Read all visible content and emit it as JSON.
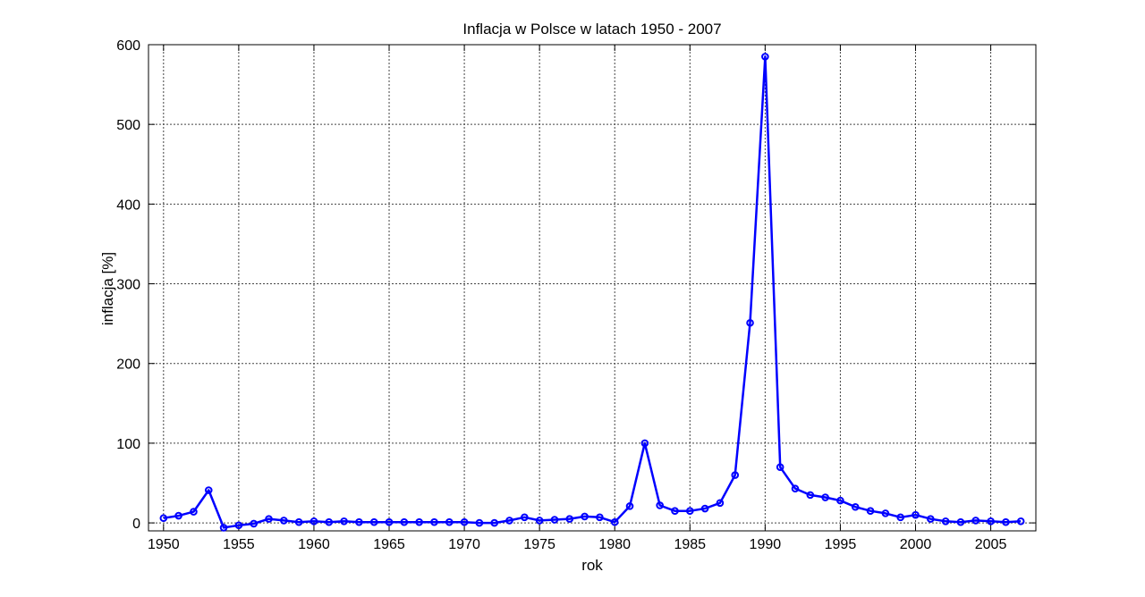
{
  "chart_data": {
    "type": "line",
    "title": "Inflacja w Polsce w latach 1950 - 2007",
    "xlabel": "rok",
    "ylabel": "inflacja [%]",
    "xlim": [
      1949,
      2008
    ],
    "ylim": [
      -10,
      600
    ],
    "xticks": [
      1950,
      1955,
      1960,
      1965,
      1970,
      1975,
      1980,
      1985,
      1990,
      1995,
      2000,
      2005
    ],
    "yticks": [
      0,
      100,
      200,
      300,
      400,
      500,
      600
    ],
    "grid": true,
    "line_color": "#0000ff",
    "marker": "circle",
    "series": [
      {
        "x": [
          1950,
          1951,
          1952,
          1953,
          1954,
          1955,
          1956,
          1957,
          1958,
          1959,
          1960,
          1961,
          1962,
          1963,
          1964,
          1965,
          1966,
          1967,
          1968,
          1969,
          1970,
          1971,
          1972,
          1973,
          1974,
          1975,
          1976,
          1977,
          1978,
          1979,
          1980,
          1981,
          1982,
          1983,
          1984,
          1985,
          1986,
          1987,
          1988,
          1989,
          1990,
          1991,
          1992,
          1993,
          1994,
          1995,
          1996,
          1997,
          1998,
          1999,
          2000,
          2001,
          2002,
          2003,
          2004,
          2005,
          2006,
          2007
        ],
        "values": [
          6,
          9,
          14,
          41,
          -6,
          -3,
          -1,
          5,
          3,
          1,
          2,
          1,
          2,
          1,
          1,
          1,
          1,
          1,
          1,
          1,
          1,
          0,
          0,
          3,
          7,
          3,
          4,
          5,
          8,
          7,
          1,
          21,
          100,
          22,
          15,
          15,
          18,
          25,
          60,
          251,
          585,
          70,
          43,
          35,
          32,
          28,
          20,
          15,
          12,
          7,
          10,
          5,
          2,
          1,
          3,
          2,
          1,
          2
        ]
      }
    ]
  }
}
